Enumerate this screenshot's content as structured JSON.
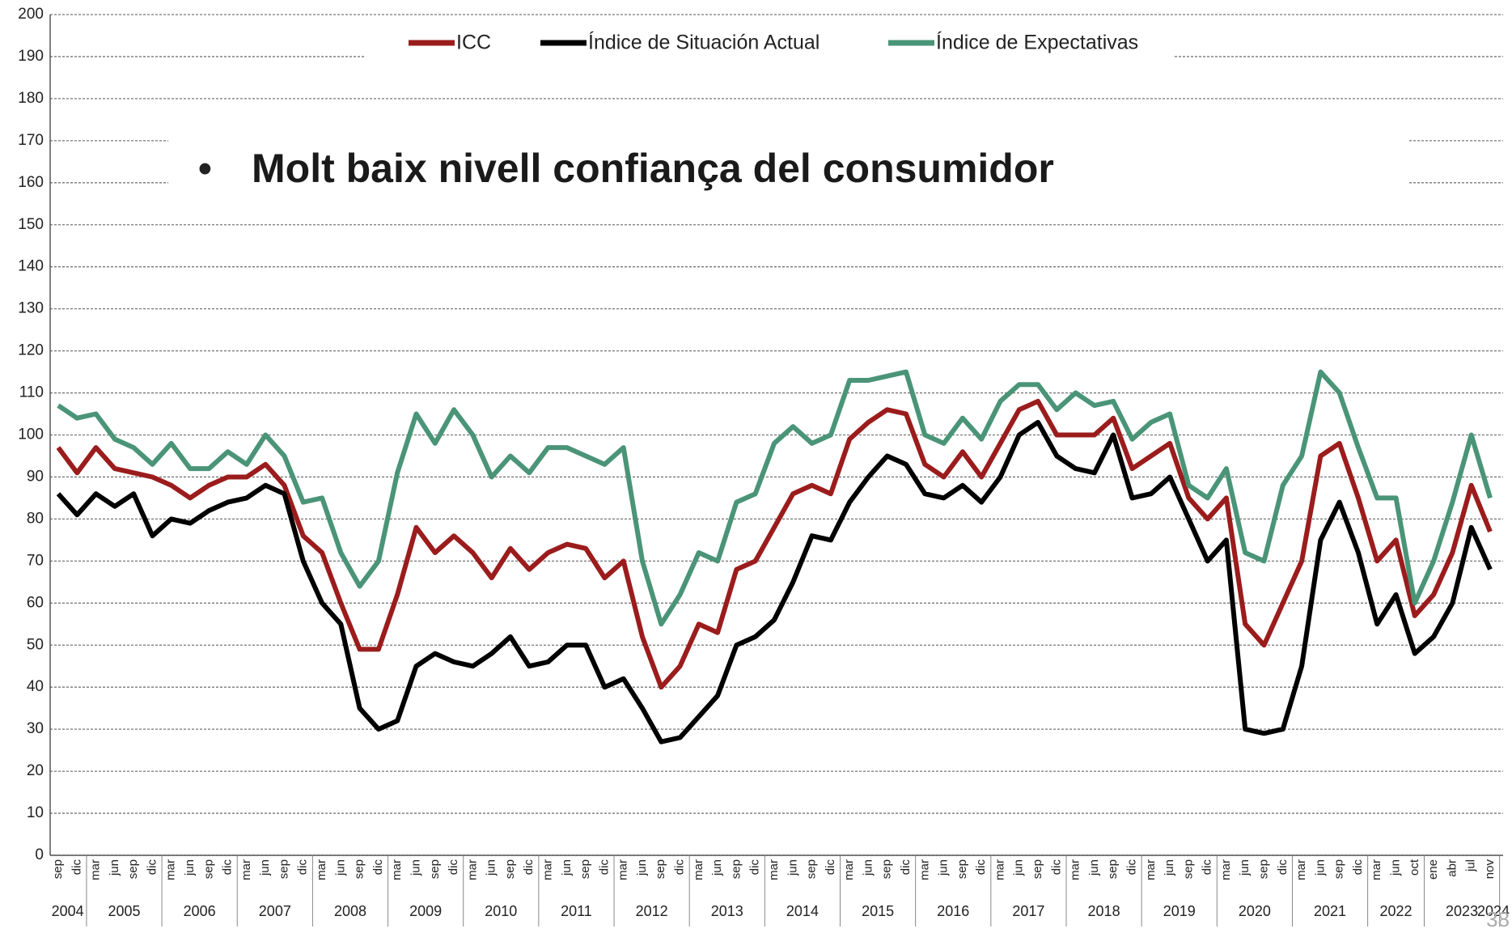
{
  "chart_data": {
    "type": "line",
    "annotation": "Molt baix nivell confiança del consumidor",
    "page_number": "38",
    "years": [
      {
        "label": "2004",
        "categories": [
          "sep",
          "dic"
        ]
      },
      {
        "label": "2005",
        "categories": [
          "mar",
          "jun",
          "sep",
          "dic"
        ]
      },
      {
        "label": "2006",
        "categories": [
          "mar",
          "jun",
          "sep",
          "dic"
        ]
      },
      {
        "label": "2007",
        "categories": [
          "mar",
          "jun",
          "sep",
          "dic"
        ]
      },
      {
        "label": "2008",
        "categories": [
          "mar",
          "jun",
          "sep",
          "dic"
        ]
      },
      {
        "label": "2009",
        "categories": [
          "mar",
          "jun",
          "sep",
          "dic"
        ]
      },
      {
        "label": "2010",
        "categories": [
          "mar",
          "jun",
          "sep",
          "dic"
        ]
      },
      {
        "label": "2011",
        "categories": [
          "mar",
          "jun",
          "sep",
          "dic"
        ]
      },
      {
        "label": "2012",
        "categories": [
          "mar",
          "jun",
          "sep",
          "dic"
        ]
      },
      {
        "label": "2013",
        "categories": [
          "mar",
          "jun",
          "sep",
          "dic"
        ]
      },
      {
        "label": "2014",
        "categories": [
          "mar",
          "jun",
          "sep",
          "dic"
        ]
      },
      {
        "label": "2015",
        "categories": [
          "mar",
          "jun",
          "sep",
          "dic"
        ]
      },
      {
        "label": "2016",
        "categories": [
          "mar",
          "jun",
          "sep",
          "dic"
        ]
      },
      {
        "label": "2017",
        "categories": [
          "mar",
          "jun",
          "sep",
          "dic"
        ]
      },
      {
        "label": "2018",
        "categories": [
          "mar",
          "jun",
          "sep",
          "dic"
        ]
      },
      {
        "label": "2019",
        "categories": [
          "mar",
          "jun",
          "sep",
          "dic"
        ]
      },
      {
        "label": "2020",
        "categories": [
          "mar",
          "jun",
          "sep",
          "dic"
        ]
      },
      {
        "label": "2021",
        "categories": [
          "mar",
          "jun",
          "sep",
          "dic"
        ]
      },
      {
        "label": "2022",
        "categories": [
          "mar",
          "jun",
          "oct"
        ]
      },
      {
        "label": "2023",
        "categories": [
          "ene",
          "abr",
          "jul",
          "nov"
        ]
      },
      {
        "label": "2024",
        "categories": []
      }
    ],
    "series": [
      {
        "name": "ICC",
        "color": "#9b1c1c",
        "values": [
          97,
          91,
          97,
          92,
          91,
          90,
          88,
          85,
          88,
          90,
          90,
          93,
          88,
          76,
          72,
          60,
          49,
          49,
          62,
          78,
          72,
          76,
          72,
          66,
          73,
          68,
          72,
          74,
          73,
          66,
          70,
          52,
          40,
          45,
          55,
          53,
          68,
          70,
          78,
          86,
          88,
          86,
          99,
          103,
          106,
          105,
          93,
          90,
          96,
          90,
          98,
          106,
          108,
          100,
          100,
          100,
          104,
          92,
          95,
          98,
          85,
          80,
          85,
          55,
          50,
          60,
          70,
          95,
          98,
          85,
          70,
          75,
          57,
          62,
          72,
          88,
          77
        ]
      },
      {
        "name": "Índice de Situación Actual",
        "color": "#000000",
        "values": [
          86,
          81,
          86,
          83,
          86,
          76,
          80,
          79,
          82,
          84,
          85,
          88,
          86,
          70,
          60,
          55,
          35,
          30,
          32,
          45,
          48,
          46,
          45,
          48,
          52,
          45,
          46,
          50,
          50,
          40,
          42,
          35,
          27,
          28,
          33,
          38,
          50,
          52,
          56,
          65,
          76,
          75,
          84,
          90,
          95,
          93,
          86,
          85,
          88,
          84,
          90,
          100,
          103,
          95,
          92,
          91,
          100,
          85,
          86,
          90,
          80,
          70,
          75,
          30,
          29,
          30,
          45,
          75,
          84,
          72,
          55,
          62,
          48,
          52,
          60,
          78,
          68
        ]
      },
      {
        "name": "Índice de Expectativas",
        "color": "#4a9478",
        "values": [
          107,
          104,
          105,
          99,
          97,
          93,
          98,
          92,
          92,
          96,
          93,
          100,
          95,
          84,
          85,
          72,
          64,
          70,
          91,
          105,
          98,
          106,
          100,
          90,
          95,
          91,
          97,
          97,
          95,
          93,
          97,
          70,
          55,
          62,
          72,
          70,
          84,
          86,
          98,
          102,
          98,
          100,
          113,
          113,
          114,
          115,
          100,
          98,
          104,
          99,
          108,
          112,
          112,
          106,
          110,
          107,
          108,
          99,
          103,
          105,
          88,
          85,
          92,
          72,
          70,
          88,
          95,
          115,
          110,
          97,
          85,
          85,
          60,
          70,
          84,
          100,
          85
        ]
      }
    ],
    "ylim": [
      0,
      200
    ],
    "yticks": [
      0,
      10,
      20,
      30,
      40,
      50,
      60,
      70,
      80,
      90,
      100,
      110,
      120,
      130,
      140,
      150,
      160,
      170,
      180,
      190,
      200
    ],
    "grid": true,
    "legend": "top"
  }
}
